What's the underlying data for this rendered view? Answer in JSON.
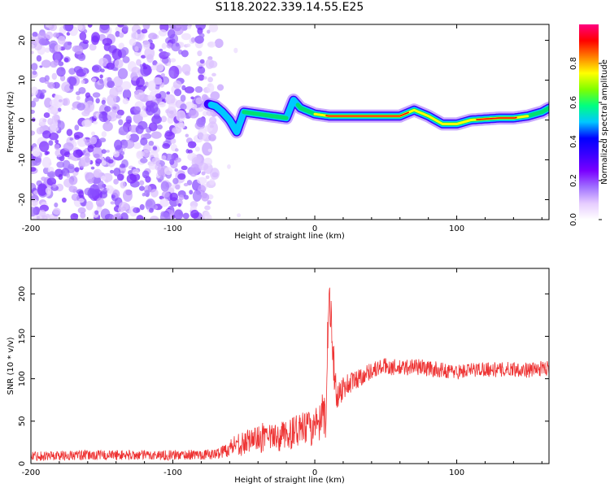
{
  "chart_data": [
    {
      "type": "heatmap",
      "title": "S118.2022.339.14.55.E25",
      "xlabel": "Height of straight line (km)",
      "ylabel": "Frequency (Hz)",
      "xlim": [
        -200,
        165
      ],
      "ylim": [
        -25,
        24
      ],
      "xticks": [
        -200,
        -100,
        0,
        100
      ],
      "xtick_labels": [
        "-200",
        "-100",
        "0",
        "100"
      ],
      "yticks": [
        -20,
        -10,
        0,
        10,
        20
      ],
      "ytick_labels": [
        "-20",
        "-10",
        "0",
        "10",
        "20"
      ],
      "colorbar": {
        "label": "Normalized spectral amplitude",
        "range": [
          0,
          1
        ],
        "ticks": [
          0.0,
          0.2,
          0.4,
          0.6,
          0.8
        ],
        "tick_labels": [
          "0.0",
          "0.2",
          "0.4",
          "0.6",
          "0.8"
        ],
        "colors": [
          "#ffffff",
          "#e6ccff",
          "#a070ff",
          "#7a00ff",
          "#3a00ff",
          "#0000ff",
          "#00c8ff",
          "#00ff80",
          "#7fff00",
          "#ffff00",
          "#ff8000",
          "#ff0000",
          "#ff0080"
        ]
      },
      "noise_region_x": [
        -200,
        -55
      ],
      "ridge": {
        "x": [
          -75,
          -70,
          -65,
          -60,
          -55,
          -50,
          -40,
          -30,
          -20,
          -15,
          -10,
          0,
          10,
          20,
          40,
          60,
          70,
          80,
          90,
          100,
          110,
          130,
          140,
          150,
          160,
          165
        ],
        "y": [
          4,
          3.5,
          2,
          0,
          -3,
          2,
          1.5,
          1,
          0.5,
          5,
          3,
          1.5,
          1,
          1,
          1,
          1,
          2.5,
          1,
          -1,
          -1,
          0,
          0.5,
          0.5,
          1,
          2,
          3
        ],
        "amplitude": [
          0.3,
          0.45,
          0.45,
          0.4,
          0.35,
          0.55,
          0.6,
          0.6,
          0.55,
          0.5,
          0.6,
          0.7,
          0.85,
          0.95,
          0.95,
          0.85,
          0.8,
          0.75,
          0.7,
          0.7,
          0.8,
          0.9,
          0.85,
          0.7,
          0.6,
          0.6
        ]
      },
      "grid": false
    },
    {
      "type": "line",
      "xlabel": "Height of straight line (km)",
      "ylabel": "SNR (10 * v/v)",
      "xlim": [
        -200,
        165
      ],
      "ylim": [
        0,
        230
      ],
      "xticks": [
        -200,
        -100,
        0,
        100
      ],
      "xtick_labels": [
        "-200",
        "-100",
        "0",
        "100"
      ],
      "yticks": [
        0,
        50,
        100,
        150,
        200
      ],
      "ytick_labels": [
        "0",
        "50",
        "100",
        "150",
        "200"
      ],
      "series": [
        {
          "color": "#ee3333",
          "x": [
            -200,
            -150,
            -100,
            -70,
            -60,
            -55,
            -50,
            -45,
            -40,
            -30,
            -20,
            -10,
            0,
            5,
            8,
            10,
            12,
            15,
            20,
            30,
            40,
            50,
            60,
            70,
            80,
            90,
            100,
            110,
            120,
            130,
            140,
            150,
            160,
            165
          ],
          "y": [
            9,
            10,
            10,
            11,
            18,
            25,
            22,
            30,
            28,
            30,
            33,
            40,
            42,
            48,
            60,
            200,
            150,
            80,
            90,
            100,
            110,
            115,
            112,
            115,
            112,
            110,
            108,
            110,
            112,
            110,
            112,
            110,
            112,
            113
          ],
          "noise_amplitude": [
            6,
            6,
            6,
            6,
            10,
            14,
            14,
            14,
            16,
            16,
            18,
            20,
            22,
            25,
            30,
            30,
            30,
            20,
            15,
            12,
            10,
            10,
            10,
            10,
            10,
            9,
            9,
            9,
            9,
            9,
            9,
            9,
            9,
            9
          ]
        }
      ],
      "grid": false
    }
  ]
}
